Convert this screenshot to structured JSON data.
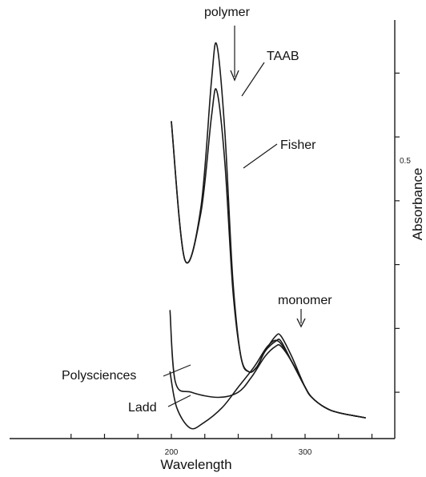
{
  "chart_data": {
    "type": "line",
    "xlabel": "Wavelength",
    "ylabel": "Absorbance",
    "x_ticks": [
      "200",
      "300"
    ],
    "y_ticks": [
      "0.5"
    ],
    "series": [
      {
        "name": "TAAB",
        "x": [
          200,
          210,
          222,
          230,
          234,
          240,
          246,
          252,
          258,
          264,
          270,
          278,
          282,
          290,
          300,
          305,
          315,
          325,
          345
        ],
        "y": [
          0.58,
          0.31,
          0.41,
          0.66,
          0.73,
          0.56,
          0.27,
          0.12,
          0.09,
          0.1,
          0.13,
          0.16,
          0.16,
          0.12,
          0.06,
          0.04,
          0.02,
          0.01,
          0.0
        ]
      },
      {
        "name": "Fisher",
        "x": [
          200,
          210,
          222,
          230,
          234,
          240,
          246,
          252,
          258,
          264,
          270,
          278,
          282,
          290,
          300,
          305,
          315,
          325,
          345
        ],
        "y": [
          0.58,
          0.31,
          0.4,
          0.59,
          0.64,
          0.5,
          0.25,
          0.12,
          0.09,
          0.1,
          0.13,
          0.15,
          0.15,
          0.11,
          0.06,
          0.04,
          0.02,
          0.01,
          0.0
        ]
      },
      {
        "name": "Polysciences",
        "x": [
          199,
          203,
          215,
          235,
          250,
          260,
          270,
          278,
          282,
          290,
          300,
          305,
          315,
          325,
          345
        ],
        "y": [
          0.21,
          0.07,
          0.05,
          0.04,
          0.05,
          0.08,
          0.12,
          0.14,
          0.14,
          0.11,
          0.06,
          0.04,
          0.02,
          0.01,
          0.0
        ]
      },
      {
        "name": "Ladd",
        "x": [
          199,
          204,
          214,
          224,
          238,
          250,
          262,
          272,
          280,
          290,
          300,
          305,
          315,
          325,
          345
        ],
        "y": [
          0.09,
          0.02,
          -0.02,
          -0.01,
          0.02,
          0.06,
          0.1,
          0.14,
          0.15,
          0.11,
          0.06,
          0.04,
          0.02,
          0.01,
          0.0
        ]
      }
    ],
    "annotations": [
      "polymer",
      "monomer"
    ],
    "grid": false
  }
}
